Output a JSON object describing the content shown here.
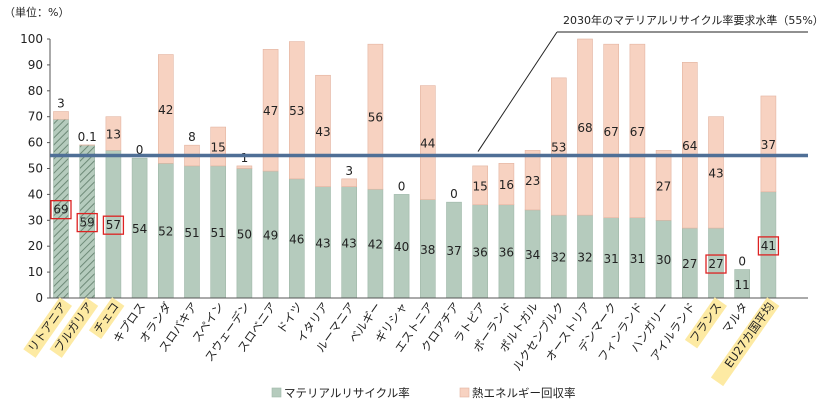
{
  "chart_data": {
    "type": "bar",
    "stacked": true,
    "unit_label": "（単位：%）",
    "ylim": [
      0,
      100
    ],
    "y_ticks": [
      0,
      10,
      20,
      30,
      40,
      50,
      60,
      70,
      80,
      90,
      100
    ],
    "categories": [
      "リトアニア",
      "ブルガリア",
      "チェコ",
      "キプロス",
      "オランダ",
      "スロバキア",
      "スペイン",
      "スウェーデン",
      "スロベニア",
      "ドイツ",
      "イタリア",
      "ルーマニア",
      "ベルギー",
      "ギリシャ",
      "エストニア",
      "クロアチア",
      "ラトビア",
      "ポーランド",
      "ポルトガル",
      "ルクセンブルク",
      "オーストリア",
      "デンマーク",
      "フィンランド",
      "ハンガリー",
      "アイルランド",
      "フランス",
      "マルタ",
      "EU27カ国平均"
    ],
    "highlighted_categories": [
      "リトアニア",
      "ブルガリア",
      "チェコ",
      "フランス",
      "EU27カ国平均"
    ],
    "series": [
      {
        "name": "マテリアルリサイクル率",
        "color": "#b5cbbd",
        "values": [
          69,
          59,
          57,
          54,
          52,
          51,
          51,
          50,
          49,
          46,
          43,
          43,
          42,
          40,
          38,
          37,
          36,
          36,
          34,
          32,
          32,
          31,
          31,
          30,
          27,
          27,
          11,
          41
        ]
      },
      {
        "name": "熱エネルギー回収率",
        "color": "#f7d2c1",
        "values": [
          3,
          0.1,
          13,
          0,
          42,
          8,
          15,
          1,
          47,
          53,
          43,
          3,
          56,
          0,
          44,
          0,
          15,
          16,
          23,
          53,
          68,
          67,
          67,
          27,
          64,
          43,
          0,
          37
        ]
      }
    ],
    "boxed_values": [
      69,
      59,
      57,
      27,
      41
    ],
    "target_line": {
      "value": 55,
      "label": "2030年のマテリアルリサイクル率要求水準（55%）",
      "color": "#4f6f96"
    },
    "legend_position": "bottom-center"
  }
}
